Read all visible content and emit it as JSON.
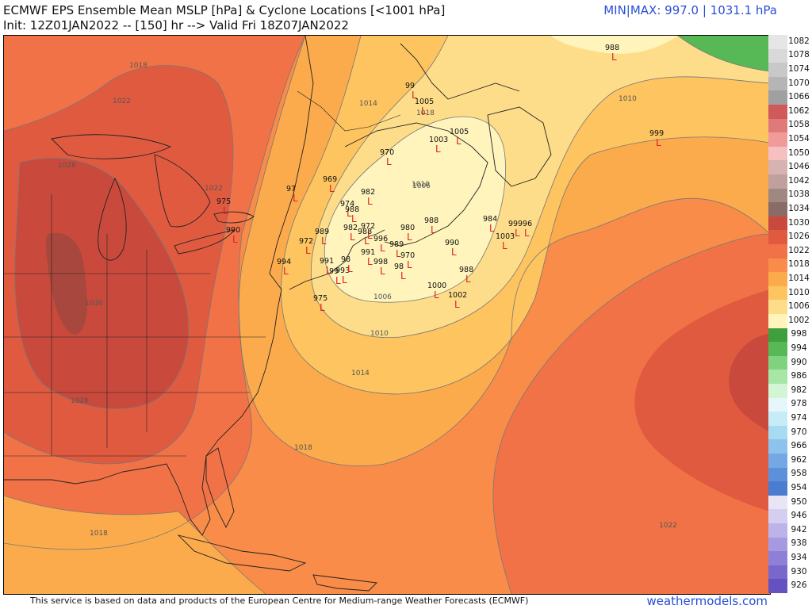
{
  "header": {
    "title": "ECMWF EPS Ensemble Mean MSLP [hPa] & Cyclone Locations [<1001 hPa]",
    "subtitle": "Init: 12Z01JAN2022 -- [150] hr --> Valid Fri 18Z07JAN2022",
    "minmax": "MIN|MAX: 997.0 | 1031.1 hPa"
  },
  "footer": {
    "credit": "This service is based on data and products of the European Centre for Medium-range Weather Forecasts (ECMWF)",
    "brand": "weathermodels.com"
  },
  "colorbar": [
    {
      "label": "1082",
      "color": "#e6e6e6"
    },
    {
      "label": "1078",
      "color": "#d9d9d9"
    },
    {
      "label": "1074",
      "color": "#c8c8c8"
    },
    {
      "label": "1070",
      "color": "#b5b5b5"
    },
    {
      "label": "1066",
      "color": "#a0a0a0"
    },
    {
      "label": "1062",
      "color": "#d05a5a"
    },
    {
      "label": "1058",
      "color": "#e07a7a"
    },
    {
      "label": "1054",
      "color": "#f09a9a"
    },
    {
      "label": "1050",
      "color": "#f7c0c0"
    },
    {
      "label": "1046",
      "color": "#d6b3b0"
    },
    {
      "label": "1042",
      "color": "#bfa09c"
    },
    {
      "label": "1038",
      "color": "#a08882"
    },
    {
      "label": "1034",
      "color": "#8a6c66"
    },
    {
      "label": "1030",
      "color": "#c94a3c"
    },
    {
      "label": "1026",
      "color": "#e05a40"
    },
    {
      "label": "1022",
      "color": "#f27248"
    },
    {
      "label": "1018",
      "color": "#f88c48"
    },
    {
      "label": "1014",
      "color": "#fbab4c"
    },
    {
      "label": "1010",
      "color": "#fdc460"
    },
    {
      "label": "1006",
      "color": "#fedd8a"
    },
    {
      "label": "1002",
      "color": "#fff4bc"
    },
    {
      "label": "998",
      "color": "#3f9f3f"
    },
    {
      "label": "994",
      "color": "#56b956"
    },
    {
      "label": "990",
      "color": "#7fd37f"
    },
    {
      "label": "986",
      "color": "#a8e6a8"
    },
    {
      "label": "982",
      "color": "#d4f5d4"
    },
    {
      "label": "978",
      "color": "#e6f7fb"
    },
    {
      "label": "974",
      "color": "#c6ecf7"
    },
    {
      "label": "970",
      "color": "#a8daf2"
    },
    {
      "label": "966",
      "color": "#8cc2ec"
    },
    {
      "label": "962",
      "color": "#73a8e4"
    },
    {
      "label": "958",
      "color": "#5d90db"
    },
    {
      "label": "954",
      "color": "#4a7ccf"
    },
    {
      "label": "950",
      "color": "#e8e6f6"
    },
    {
      "label": "946",
      "color": "#d4cff0"
    },
    {
      "label": "942",
      "color": "#bcb4e8"
    },
    {
      "label": "938",
      "color": "#a59ae0"
    },
    {
      "label": "934",
      "color": "#8e80d6"
    },
    {
      "label": "930",
      "color": "#7868cc"
    },
    {
      "label": "926",
      "color": "#6452c0"
    }
  ],
  "isobar_labels": [
    {
      "text": "1018"
    },
    {
      "text": "1022"
    },
    {
      "text": "1026"
    },
    {
      "text": "1030"
    },
    {
      "text": "1026"
    },
    {
      "text": "1022"
    },
    {
      "text": "1014"
    },
    {
      "text": "1018"
    },
    {
      "text": "1010"
    },
    {
      "text": "1006"
    },
    {
      "text": "1006"
    },
    {
      "text": "1010"
    },
    {
      "text": "1014"
    },
    {
      "text": "1018"
    },
    {
      "text": "1018"
    },
    {
      "text": "1022"
    },
    {
      "text": "1010"
    }
  ],
  "cyclones": [
    {
      "label": "988"
    },
    {
      "label": "99"
    },
    {
      "label": "1005"
    },
    {
      "label": "1005"
    },
    {
      "label": "1003"
    },
    {
      "label": "999"
    },
    {
      "label": "970"
    },
    {
      "label": "969"
    },
    {
      "label": "97"
    },
    {
      "label": "982"
    },
    {
      "label": "975"
    },
    {
      "label": "974"
    },
    {
      "label": "988"
    },
    {
      "label": "990"
    },
    {
      "label": "989"
    },
    {
      "label": "982"
    },
    {
      "label": "972"
    },
    {
      "label": "988"
    },
    {
      "label": "996"
    },
    {
      "label": "980"
    },
    {
      "label": "988"
    },
    {
      "label": "984"
    },
    {
      "label": "99"
    },
    {
      "label": "996"
    },
    {
      "label": "1003"
    },
    {
      "label": "990"
    },
    {
      "label": "972"
    },
    {
      "label": "991"
    },
    {
      "label": "989"
    },
    {
      "label": "970"
    },
    {
      "label": "998"
    },
    {
      "label": "98"
    },
    {
      "label": "988"
    },
    {
      "label": "994"
    },
    {
      "label": "991"
    },
    {
      "label": "993"
    },
    {
      "label": "99"
    },
    {
      "label": "975"
    },
    {
      "label": "1000"
    },
    {
      "label": "1002"
    },
    {
      "label": "98"
    }
  ]
}
